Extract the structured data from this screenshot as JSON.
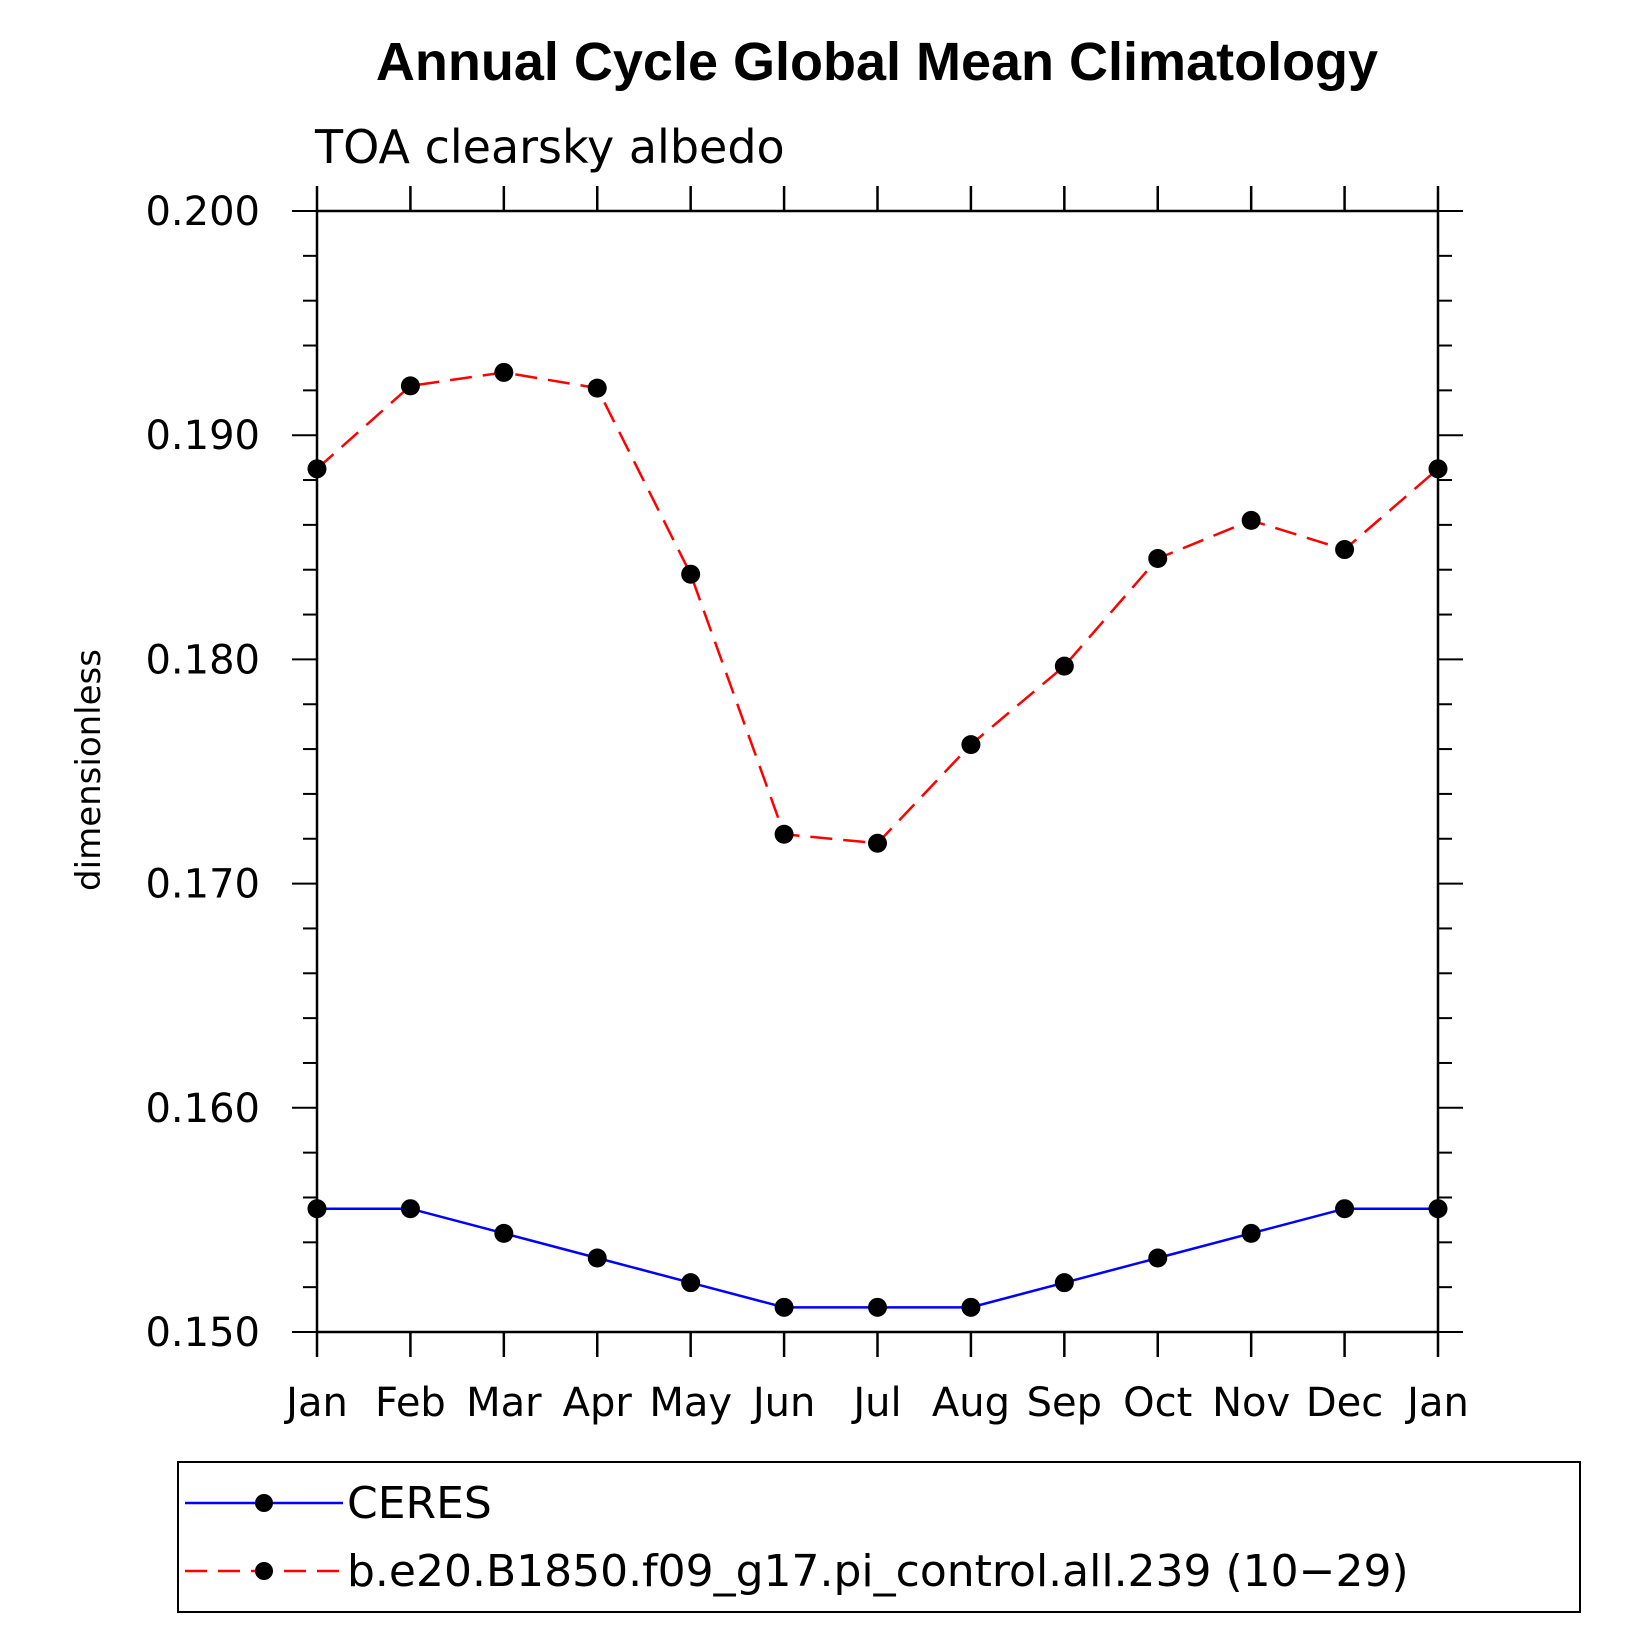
{
  "chart_data": {
    "type": "line",
    "title": "Annual Cycle Global Mean Climatology",
    "subtitle": "TOA clearsky albedo",
    "xlabel": "",
    "ylabel": "dimensionless",
    "categories": [
      "Jan",
      "Feb",
      "Mar",
      "Apr",
      "May",
      "Jun",
      "Jul",
      "Aug",
      "Sep",
      "Oct",
      "Nov",
      "Dec",
      "Jan"
    ],
    "ylim": [
      0.15,
      0.2
    ],
    "yticks": [
      "0.150",
      "0.160",
      "0.170",
      "0.180",
      "0.190",
      "0.200"
    ],
    "ytick_values": [
      0.15,
      0.16,
      0.17,
      0.18,
      0.19,
      0.2
    ],
    "grid": false,
    "legend_position": "bottom",
    "series": [
      {
        "name": "CERES",
        "color": "#0000ff",
        "style": "solid",
        "marker": "dot",
        "values": [
          0.1555,
          0.1555,
          0.1544,
          0.1533,
          0.1522,
          0.1511,
          0.1511,
          0.1511,
          0.1522,
          0.1533,
          0.1544,
          0.1555,
          0.1555
        ]
      },
      {
        "name": "b.e20.B1850.f09_g17.pi_control.all.239 (10−29)",
        "color": "#ff0000",
        "style": "dashed",
        "marker": "dot",
        "values": [
          0.1885,
          0.1922,
          0.1928,
          0.1921,
          0.1838,
          0.1722,
          0.1718,
          0.1762,
          0.1797,
          0.1845,
          0.1862,
          0.1849,
          0.1885
        ]
      }
    ]
  }
}
